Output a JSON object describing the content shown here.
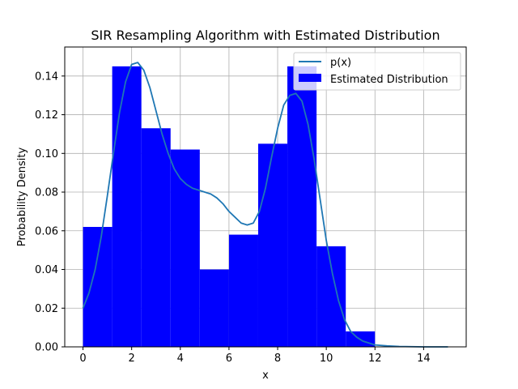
{
  "chart_data": {
    "type": "bar",
    "title": "SIR Resampling Algorithm with Estimated Distribution",
    "xlabel": "x",
    "ylabel": "Probability Density",
    "xlim": [
      -0.75,
      15.75
    ],
    "ylim": [
      0,
      0.155
    ],
    "xticks": [
      "0",
      "2",
      "4",
      "6",
      "8",
      "10",
      "12",
      "14"
    ],
    "xtick_values": [
      0,
      2,
      4,
      6,
      8,
      10,
      12,
      14
    ],
    "yticks": [
      "0.00",
      "0.02",
      "0.04",
      "0.06",
      "0.08",
      "0.10",
      "0.12",
      "0.14"
    ],
    "ytick_values": [
      0,
      0.02,
      0.04,
      0.06,
      0.08,
      0.1,
      0.12,
      0.14
    ],
    "grid": true,
    "legend_position": "top-right",
    "histogram": {
      "name": "Estimated Distribution",
      "color": "#0000ff",
      "bin_edges": [
        0,
        1.2,
        2.4,
        3.6,
        4.8,
        6.0,
        7.2,
        8.4,
        9.6,
        10.8,
        12.0
      ],
      "values": [
        0.062,
        0.145,
        0.113,
        0.102,
        0.04,
        0.058,
        0.105,
        0.145,
        0.052,
        0.008
      ]
    },
    "line": {
      "name": "p(x)",
      "color": "#1f77b4",
      "x": [
        0,
        0.25,
        0.5,
        0.75,
        1.0,
        1.25,
        1.5,
        1.75,
        2.0,
        2.25,
        2.5,
        2.75,
        3.0,
        3.25,
        3.5,
        3.75,
        4.0,
        4.25,
        4.5,
        4.75,
        5.0,
        5.25,
        5.5,
        5.75,
        6.0,
        6.25,
        6.5,
        6.75,
        7.0,
        7.25,
        7.5,
        7.75,
        8.0,
        8.25,
        8.5,
        8.75,
        9.0,
        9.25,
        9.5,
        9.75,
        10.0,
        10.25,
        10.5,
        10.75,
        11.0,
        11.25,
        11.5,
        11.75,
        12.0,
        12.5,
        13.0,
        13.5,
        14.0,
        14.5,
        15.0
      ],
      "y": [
        0.02,
        0.028,
        0.04,
        0.057,
        0.078,
        0.1,
        0.121,
        0.137,
        0.146,
        0.147,
        0.143,
        0.134,
        0.122,
        0.11,
        0.1,
        0.092,
        0.087,
        0.084,
        0.082,
        0.081,
        0.08,
        0.079,
        0.077,
        0.074,
        0.07,
        0.067,
        0.064,
        0.063,
        0.064,
        0.07,
        0.082,
        0.098,
        0.113,
        0.125,
        0.13,
        0.131,
        0.127,
        0.115,
        0.097,
        0.076,
        0.055,
        0.038,
        0.024,
        0.014,
        0.008,
        0.005,
        0.003,
        0.002,
        0.001,
        0.0005,
        0.0002,
        0.0001,
        0.0,
        0.0,
        0.0
      ]
    }
  }
}
